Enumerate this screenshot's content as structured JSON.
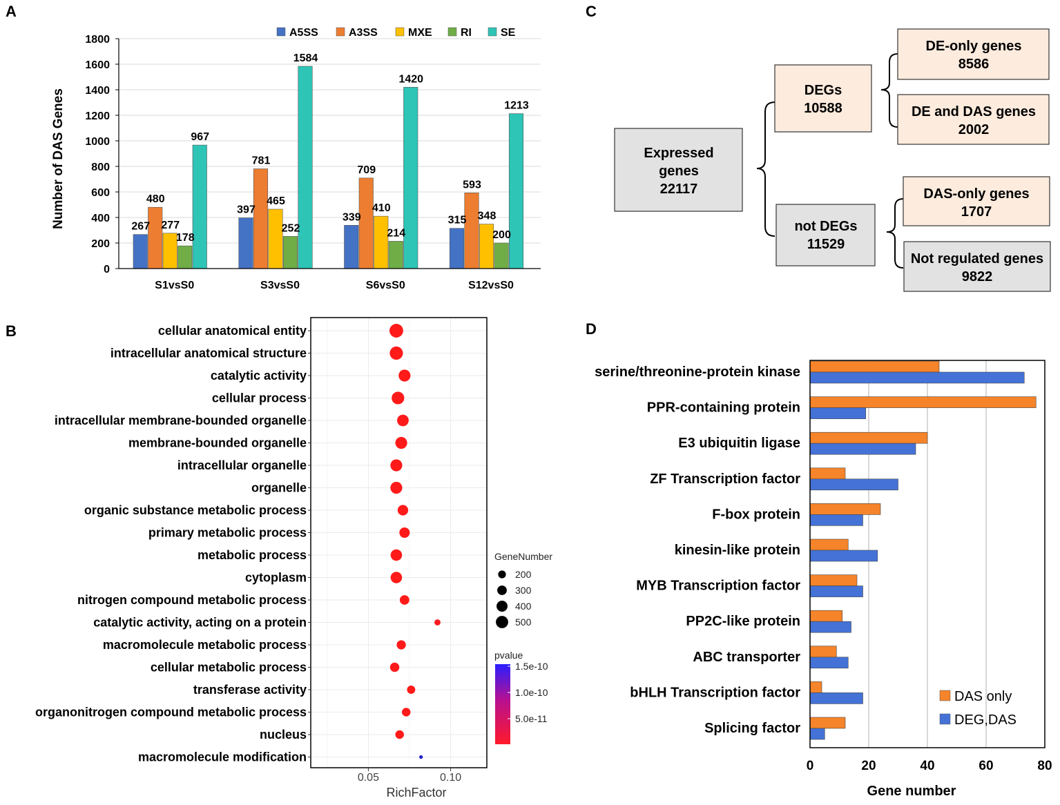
{
  "panels": {
    "a": "A",
    "b": "B",
    "c": "C",
    "d": "D"
  },
  "colors": {
    "A5SS": "#4472c4",
    "A3SS": "#ed7d31",
    "MXE": "#ffc000",
    "RI": "#70ad47",
    "SE": "#2ec4b6",
    "das_only": "#f5842a",
    "deg_das": "#4472d6",
    "box_peach": "#fdebdd",
    "box_gray": "#e2e2e2",
    "point_red": "#ff1a1a",
    "point_blue": "#2222cc"
  },
  "chart_data": [
    {
      "id": "A",
      "type": "bar",
      "title": "",
      "ylabel": "Number of DAS Genes",
      "xlabel": "",
      "ylim": [
        0,
        1800
      ],
      "yticks": [
        0,
        200,
        400,
        600,
        800,
        1000,
        1200,
        1400,
        1600,
        1800
      ],
      "categories": [
        "S1vsS0",
        "S3vsS0",
        "S6vsS0",
        "S12vsS0"
      ],
      "legend_position": "top",
      "series": [
        {
          "name": "A5SS",
          "values": [
            267,
            397,
            339,
            315
          ]
        },
        {
          "name": "A3SS",
          "values": [
            480,
            781,
            709,
            593
          ]
        },
        {
          "name": "MXE",
          "values": [
            277,
            465,
            410,
            348
          ]
        },
        {
          "name": "RI",
          "values": [
            178,
            252,
            214,
            200
          ]
        },
        {
          "name": "SE",
          "values": [
            967,
            1584,
            1420,
            1213
          ]
        }
      ]
    },
    {
      "id": "B",
      "type": "scatter",
      "xlabel": "RichFactor",
      "ylabel": "",
      "xlim": [
        0.015,
        0.122
      ],
      "xticks": [
        0.05,
        0.1
      ],
      "xtick_labels": [
        "0.05",
        "0.10"
      ],
      "terms": [
        "cellular anatomical entity",
        "intracellular anatomical structure",
        "catalytic activity",
        "cellular process",
        "intracellular membrane-bounded organelle",
        "membrane-bounded organelle",
        "intracellular organelle",
        "organelle",
        "organic substance metabolic process",
        "primary metabolic process",
        "metabolic process",
        "cytoplasm",
        "nitrogen compound metabolic process",
        "catalytic activity, acting on a protein",
        "macromolecule metabolic process",
        "cellular metabolic process",
        "transferase activity",
        "organonitrogen compound metabolic process",
        "nucleus",
        "macromolecule modification"
      ],
      "rich_factor": [
        0.067,
        0.067,
        0.072,
        0.068,
        0.071,
        0.07,
        0.067,
        0.067,
        0.071,
        0.072,
        0.067,
        0.067,
        0.072,
        0.092,
        0.07,
        0.066,
        0.076,
        0.073,
        0.069,
        0.082
      ],
      "gene_number": [
        560,
        520,
        420,
        470,
        400,
        420,
        420,
        420,
        330,
        320,
        390,
        390,
        270,
        110,
        250,
        260,
        200,
        220,
        220,
        40
      ],
      "pvalue": [
        0,
        0,
        0,
        0,
        0,
        0,
        0,
        0,
        0,
        0,
        0,
        0,
        0,
        5e-12,
        0,
        0,
        0,
        0,
        0,
        1.5e-10
      ],
      "size_legend": {
        "title": "GeneNumber",
        "values": [
          200,
          300,
          400,
          500
        ],
        "labels": [
          "200",
          "300",
          "400",
          "500"
        ]
      },
      "color_legend": {
        "title": "pvalue",
        "labels": [
          "1.5e-10",
          "1.0e-10",
          "5.0e-11"
        ]
      }
    },
    {
      "id": "D",
      "type": "bar",
      "orientation": "horizontal",
      "xlabel": "Gene number",
      "xlim": [
        0,
        80
      ],
      "xticks": [
        0,
        20,
        40,
        60,
        80
      ],
      "categories": [
        "serine/threonine-protein kinase",
        "PPR-containing protein",
        "E3 ubiquitin ligase",
        "ZF  Transcription factor",
        "F-box protein",
        "kinesin-like protein",
        "MYB  Transcription factor",
        "PP2C-like protein",
        "ABC transporter",
        "bHLH Transcription factor",
        "Splicing  factor"
      ],
      "legend_position": "bottom-right",
      "series": [
        {
          "name": "DAS only",
          "values": [
            44,
            77,
            40,
            12,
            24,
            13,
            16,
            11,
            9,
            4,
            12
          ]
        },
        {
          "name": "DEG,DAS",
          "values": [
            73,
            19,
            36,
            30,
            18,
            23,
            18,
            14,
            13,
            18,
            5
          ]
        }
      ]
    }
  ],
  "flow": {
    "expressed": {
      "label": "Expressed genes",
      "value": "22117"
    },
    "degs": {
      "label": "DEGs",
      "value": "10588"
    },
    "not_degs": {
      "label": "not DEGs",
      "value": "11529"
    },
    "de_only": {
      "label": "DE-only genes",
      "value": "8586"
    },
    "de_and_das": {
      "label": "DE and DAS genes",
      "value": "2002"
    },
    "das_only": {
      "label": "DAS-only genes",
      "value": "1707"
    },
    "not_regulated": {
      "label": "Not regulated genes",
      "value": "9822"
    }
  }
}
